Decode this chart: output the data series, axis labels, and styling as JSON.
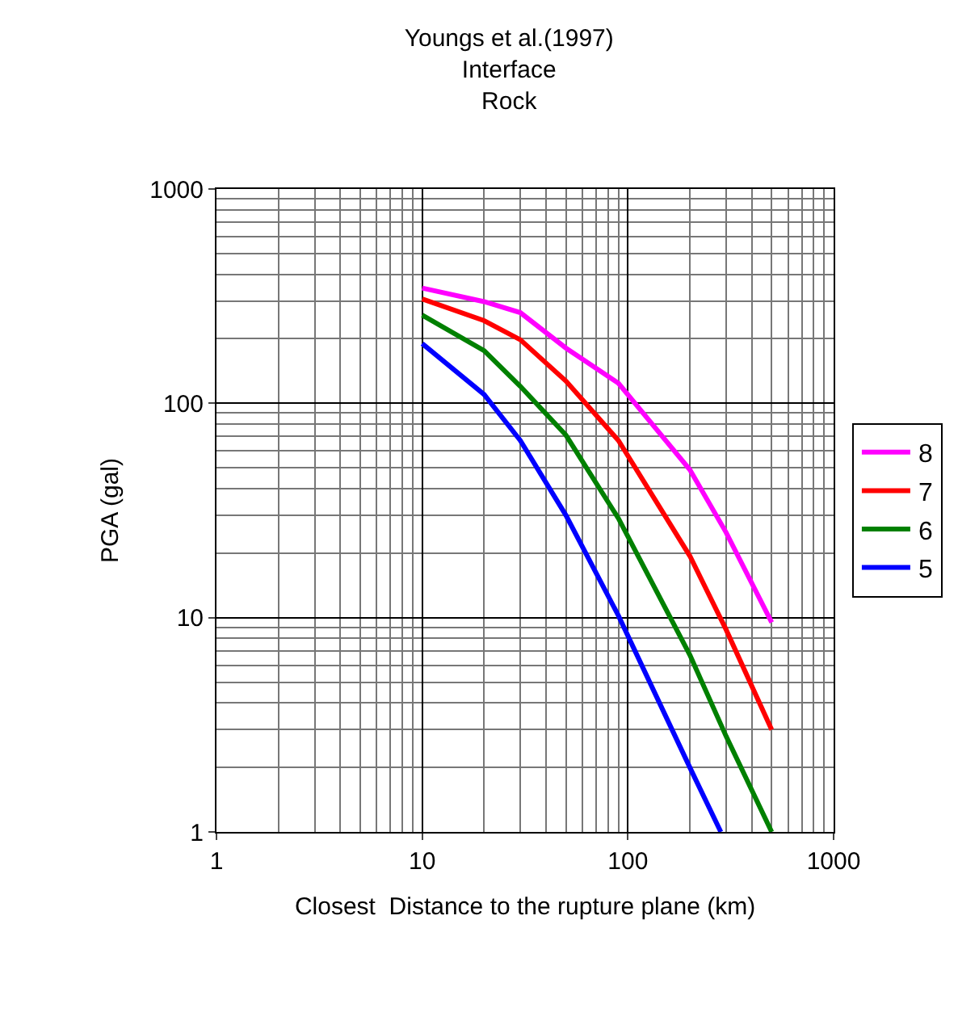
{
  "chart_data": {
    "type": "line",
    "title": "Youngs et al.(1997)\nInterface\nRock",
    "xlabel": "Closest  Distance to the rupture plane (km)",
    "ylabel": "PGA (gal)",
    "log": "xy",
    "grid": true,
    "legend": "right",
    "xlim": [
      1,
      1000
    ],
    "xticks": [
      1,
      10,
      100,
      1000
    ],
    "ylim": [
      1,
      1000
    ],
    "yticks": [
      1,
      10,
      100,
      1000
    ],
    "series": [
      {
        "name": "8",
        "color": "#ff00ff",
        "x": [
          10,
          20,
          30,
          50,
          90,
          200,
          300,
          500
        ],
        "values": [
          345,
          298,
          265,
          181,
          124,
          49,
          25,
          9.5
        ]
      },
      {
        "name": "7",
        "color": "#ff0000",
        "x": [
          10,
          20,
          30,
          50,
          90,
          200,
          300,
          500
        ],
        "values": [
          307,
          243,
          198,
          127,
          67,
          19.4,
          8.8,
          3.0
        ]
      },
      {
        "name": "6",
        "color": "#008000",
        "x": [
          10,
          20,
          30,
          50,
          90,
          200,
          300,
          500
        ],
        "values": [
          258,
          176,
          120,
          71,
          29,
          6.7,
          2.8,
          1.0
        ]
      },
      {
        "name": "5",
        "color": "#0000ff",
        "x": [
          10,
          20,
          30,
          50,
          90,
          200,
          283
        ],
        "values": [
          190,
          110,
          67,
          30,
          10.2,
          2.0,
          1.0
        ]
      }
    ]
  }
}
